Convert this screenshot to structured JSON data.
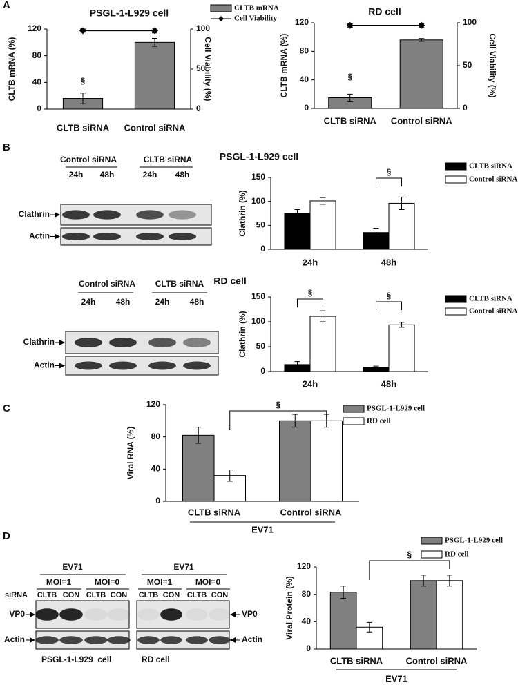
{
  "panel_labels": [
    "A",
    "B",
    "C",
    "D"
  ],
  "chart_data": [
    {
      "type": "bar",
      "title": "PSGL-1-L929 cell",
      "categories": [
        "CLTB siRNA",
        "Control siRNA"
      ],
      "series": [
        {
          "name": "CLTB mRNA",
          "color": "#808080",
          "values": [
            16,
            100
          ],
          "errors": [
            8,
            6
          ]
        },
        {
          "name": "Cell Viability",
          "type": "line",
          "axis": "y2",
          "color": "#000000",
          "values": [
            98,
            98
          ],
          "errors": [
            2,
            3
          ]
        }
      ],
      "ylabel": "CLTB  mRNA (%)",
      "y2label": "Cell Viability (%)",
      "ylim": [
        0,
        120
      ],
      "yticks": [
        0,
        40,
        80,
        120
      ],
      "y2lim": [
        0,
        100
      ],
      "y2ticks": [
        0,
        50,
        100
      ],
      "legend": true,
      "annotations": [
        "§"
      ]
    },
    {
      "type": "bar",
      "title": "RD cell",
      "categories": [
        "CLTB siRNA",
        "Control siRNA"
      ],
      "series": [
        {
          "color": "#808080",
          "values": [
            15,
            96
          ],
          "errors": [
            5,
            2
          ]
        },
        {
          "type": "line",
          "axis": "y2",
          "color": "#000000",
          "values": [
            97,
            97
          ],
          "errors": [
            2,
            2
          ]
        }
      ],
      "ylabel": "CLTB  mRNA (%)",
      "y2label": "Cell Viability (%)",
      "ylim": [
        0,
        120
      ],
      "yticks": [
        0,
        40,
        80,
        120
      ],
      "y2lim": [
        0,
        100
      ],
      "y2ticks": [
        0,
        50,
        100
      ],
      "legend": false,
      "annotations": [
        "§"
      ]
    },
    {
      "type": "bar",
      "title": "PSGL-1-L929 cell",
      "categories": [
        "24h",
        "48h"
      ],
      "series": [
        {
          "name": "CLTB siRNA",
          "color": "#000000",
          "values": [
            75,
            35
          ],
          "errors": [
            8,
            9
          ]
        },
        {
          "name": "Control siRNA",
          "color": "#ffffff",
          "values": [
            101,
            96
          ],
          "errors": [
            7,
            13
          ]
        }
      ],
      "ylabel": "Clathrin (%)",
      "ylim": [
        0,
        150
      ],
      "yticks": [
        0,
        50,
        100,
        150
      ],
      "legend": true,
      "annotations": [
        "§"
      ]
    },
    {
      "type": "bar",
      "title": "RD cell",
      "categories": [
        "24h",
        "48h"
      ],
      "series": [
        {
          "name": "CLTB siRNA",
          "color": "#000000",
          "values": [
            14,
            9
          ],
          "errors": [
            6,
            2
          ]
        },
        {
          "name": "Control siRNA",
          "color": "#ffffff",
          "values": [
            111,
            94
          ],
          "errors": [
            11,
            5
          ]
        }
      ],
      "ylabel": "Clathrin (%)",
      "ylim": [
        0,
        150
      ],
      "yticks": [
        0,
        50,
        100,
        150
      ],
      "legend": true,
      "annotations": [
        "§",
        "§"
      ]
    },
    {
      "type": "bar",
      "categories": [
        "CLTB siRNA",
        "Control siRNA"
      ],
      "series": [
        {
          "name": "PSGL-1-L929 cell",
          "color": "#808080",
          "values": [
            82,
            100
          ],
          "errors": [
            10,
            8
          ]
        },
        {
          "name": "RD cell",
          "color": "#ffffff",
          "values": [
            32,
            100
          ],
          "errors": [
            7,
            8
          ]
        }
      ],
      "ylabel": "Viral RNA (%)",
      "xlabel": "EV71",
      "ylim": [
        0,
        120
      ],
      "yticks": [
        0,
        40,
        80,
        120
      ],
      "legend": true,
      "annotations": [
        "§"
      ]
    },
    {
      "type": "bar",
      "categories": [
        "CLTB siRNA",
        "Control siRNA"
      ],
      "series": [
        {
          "name": "PSGL-1-L929 cell",
          "color": "#808080",
          "values": [
            83,
            100
          ],
          "errors": [
            9,
            8
          ]
        },
        {
          "name": "RD cell",
          "color": "#ffffff",
          "values": [
            32,
            100
          ],
          "errors": [
            7,
            8
          ]
        }
      ],
      "ylabel": "Viral Protein (%)",
      "xlabel": "EV71",
      "ylim": [
        0,
        120
      ],
      "yticks": [
        0,
        40,
        80,
        120
      ],
      "legend": true,
      "annotations": [
        "§"
      ]
    }
  ],
  "blots": [
    {
      "groups": [
        "Control siRNA",
        "CLTB siRNA"
      ],
      "lanes": [
        "24h",
        "48h",
        "24h",
        "48h"
      ],
      "rows": [
        "Clathrin",
        "Actin"
      ]
    },
    {
      "groups": [
        "Control siRNA",
        "CLTB siRNA"
      ],
      "lanes": [
        "24h",
        "48h",
        "24h",
        "48h"
      ],
      "rows": [
        "Clathrin",
        "Actin"
      ]
    },
    {
      "header": "EV71",
      "groups": [
        "MOI=1",
        "MOI=0"
      ],
      "lane_title": "siRNA",
      "lanes": [
        "CLTB",
        "CON",
        "CLTB",
        "CON"
      ],
      "rows": [
        "VP0",
        "Actin"
      ],
      "caption": "PSGL-1-L929  cell"
    },
    {
      "header": "EV71",
      "groups": [
        "MOI=1",
        "MOI=0"
      ],
      "lanes": [
        "CLTB",
        "CON",
        "CLTB",
        "CON"
      ],
      "rows": [
        "VP0",
        "Actin"
      ],
      "caption": "RD cell"
    }
  ]
}
